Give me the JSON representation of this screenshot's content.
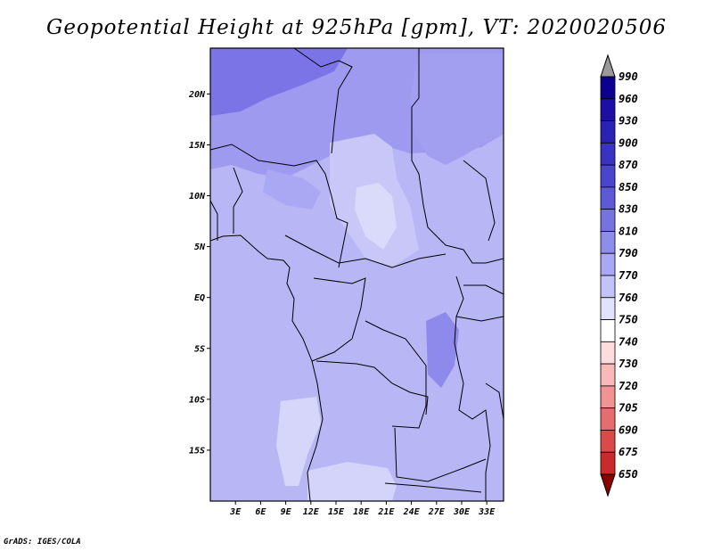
{
  "title": "Geopotential Height at 925hPa [gpm], VT: 2020020506",
  "footer": "GrADS: IGES/COLA",
  "map": {
    "lat_labels": [
      "20N",
      "15N",
      "10N",
      "5N",
      "EQ",
      "5S",
      "10S",
      "15S"
    ],
    "lon_labels": [
      "3E",
      "6E",
      "9E",
      "12E",
      "15E",
      "18E",
      "21E",
      "24E",
      "27E",
      "30E",
      "33E"
    ],
    "lat_range": [
      -20,
      24.5
    ],
    "lon_range": [
      0,
      35
    ]
  },
  "colorbar": {
    "levels": [
      "990",
      "960",
      "930",
      "900",
      "870",
      "850",
      "830",
      "810",
      "790",
      "770",
      "760",
      "750",
      "740",
      "730",
      "720",
      "705",
      "690",
      "675",
      "650"
    ],
    "colors": [
      "#0b0090",
      "#1d0fa5",
      "#2a22b2",
      "#3a33bf",
      "#4a45cc",
      "#5d5ad6",
      "#7673e1",
      "#8f8deb",
      "#a9a8f3",
      "#c3c3f9",
      "#e2e2fc",
      "#ffffff",
      "#fcdcdc",
      "#f8b9b9",
      "#f19393",
      "#e66d6d",
      "#d94a4a",
      "#c92a2a",
      "#b01111",
      "#8c0000"
    ],
    "top_arrow_color": "#9a9a9a"
  }
}
